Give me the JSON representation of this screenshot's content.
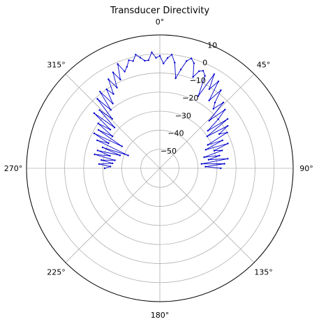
{
  "chart_data": {
    "type": "line",
    "title": "Transducer Directivity",
    "projection": "polar",
    "theta_zero_location": "N",
    "theta_direction": "clockwise",
    "theta_tick_labels": [
      "0°",
      "45°",
      "90°",
      "135°",
      "180°",
      "225°",
      "270°",
      "315°"
    ],
    "theta_ticks_deg": [
      0,
      45,
      90,
      135,
      180,
      225,
      270,
      315
    ],
    "r_tick_labels": [
      "10",
      "0",
      "−10",
      "−20",
      "−30",
      "−40",
      "−50"
    ],
    "r_ticks": [
      10,
      0,
      -10,
      -20,
      -30,
      -40,
      -50
    ],
    "rlim": [
      -60,
      10
    ],
    "r_label_position_deg": 22.5,
    "grid": true,
    "series": [
      {
        "color": "#0000cc",
        "marker": "dot",
        "theta_deg": [
          -90,
          -88,
          -86,
          -84,
          -82,
          -80,
          -78,
          -76,
          -74,
          -72,
          -70,
          -68,
          -66,
          -64,
          -62,
          -60,
          -58,
          -56,
          -54,
          -52,
          -50,
          -48,
          -46,
          -44,
          -42,
          -40,
          -38,
          -36,
          -34,
          -32,
          -30,
          -28,
          -26,
          -24,
          -22,
          -20,
          -18,
          -16,
          -14,
          -12,
          -10,
          -8,
          -6,
          -4,
          -2,
          0,
          2,
          4,
          6,
          8,
          10,
          12,
          14,
          16,
          18,
          20,
          22,
          24,
          26,
          28,
          30,
          32,
          34,
          36,
          38,
          40,
          42,
          44,
          46,
          48,
          50,
          52,
          54,
          56,
          58,
          60,
          62,
          64,
          66,
          68,
          70,
          72,
          74,
          76,
          78,
          80,
          82,
          84,
          86,
          88,
          90
        ],
        "r": [
          -31,
          -34,
          -28,
          -35,
          -29,
          -36,
          -25,
          -33,
          -26,
          -38,
          -28,
          -42,
          -24,
          -30,
          -21,
          -37,
          -22,
          -30,
          -20,
          -27,
          -15,
          -28,
          -16,
          -24,
          -11,
          -20,
          -9,
          -18,
          -10,
          -14,
          -6,
          -12,
          -4,
          -9,
          -1,
          -6,
          -4,
          -1,
          -2,
          1,
          -1,
          -3,
          -3,
          1,
          -2,
          -1,
          -5,
          -2,
          0,
          -4,
          -12,
          -7,
          -2,
          0,
          -2,
          -9,
          -5,
          -4,
          -6,
          -17,
          -3,
          -11,
          -5,
          -16,
          -8,
          -15,
          -18,
          -12,
          -24,
          -14,
          -20,
          -28,
          -16,
          -30,
          -18,
          -24,
          -20,
          -32,
          -24,
          -34,
          -22,
          -30,
          -26,
          -36,
          -28,
          -34,
          -24,
          -38,
          -26,
          -36,
          -28
        ]
      }
    ]
  }
}
